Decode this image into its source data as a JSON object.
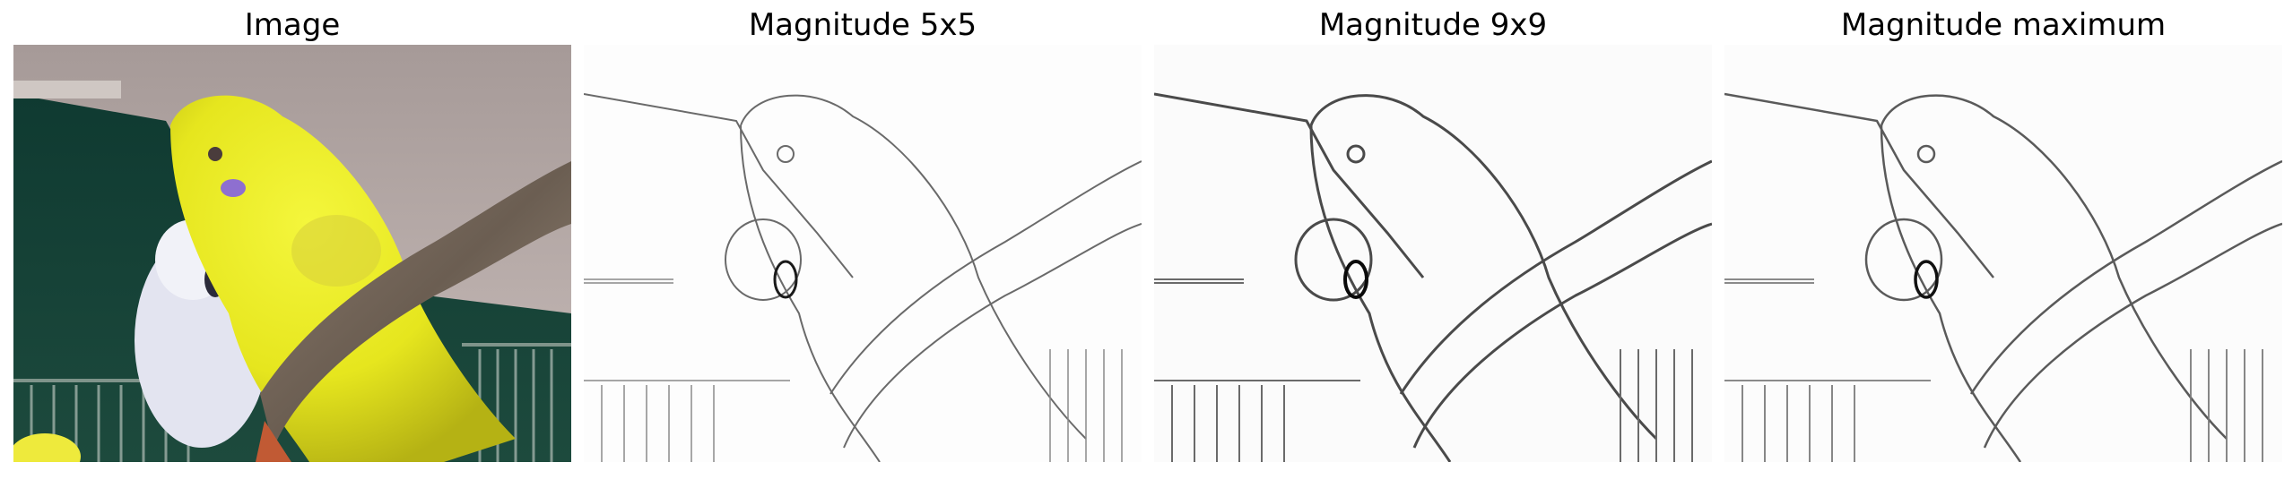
{
  "figure": {
    "panels": [
      {
        "title": "Image",
        "kind": "photo",
        "description_icon": "budgerigar-photo"
      },
      {
        "title": "Magnitude 5x5",
        "kind": "edge-map"
      },
      {
        "title": "Magnitude 9x9",
        "kind": "edge-map"
      },
      {
        "title": "Magnitude maximum",
        "kind": "edge-map"
      }
    ]
  }
}
